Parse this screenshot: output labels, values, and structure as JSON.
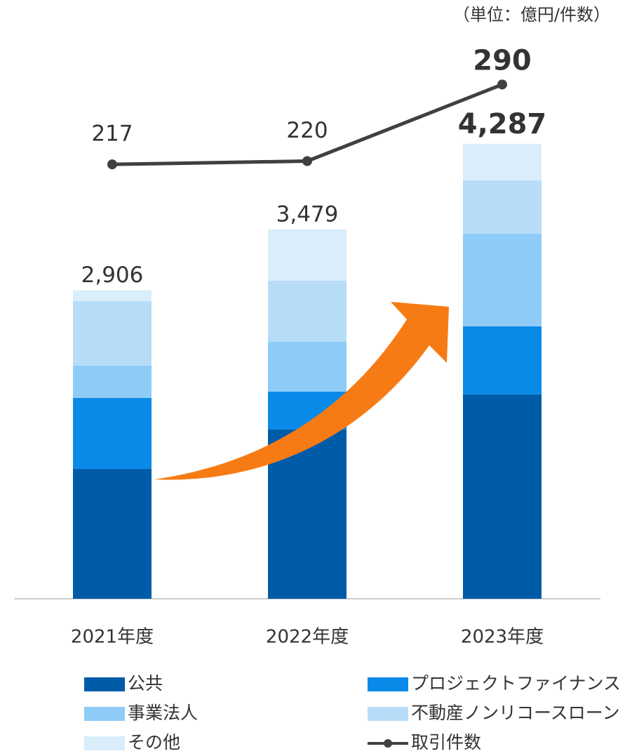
{
  "chart_data": {
    "type": "bar",
    "note": "（単位：億円/件数）",
    "categories": [
      "2021年度",
      "2022年度",
      "2023年度"
    ],
    "stacked": true,
    "ylim": [
      0,
      5000
    ],
    "y2lim": [
      -180,
      305
    ],
    "series": [
      {
        "name": "公共",
        "color": "#005ca8",
        "values": [
          1224,
          1594,
          1925
        ]
      },
      {
        "name": "プロジェクトファイナンス",
        "color": "#0a8ae8",
        "values": [
          668,
          357,
          642
        ]
      },
      {
        "name": "事業法人",
        "color": "#8fcbf7",
        "values": [
          304,
          470,
          873
        ]
      },
      {
        "name": "不動産ノンリコースローン",
        "color": "#b6dcf8",
        "values": [
          609,
          575,
          503
        ]
      },
      {
        "name": "その他",
        "color": "#d9edfb",
        "values": [
          101,
          483,
          344
        ]
      },
      {
        "name": "取引件数",
        "color": "#404040",
        "type": "line",
        "axis": "y2",
        "values": [
          217,
          220,
          290
        ]
      }
    ],
    "totals": [
      2906,
      3479,
      4287
    ],
    "total_labels": [
      "2,906",
      "3,479",
      "4,287"
    ]
  }
}
